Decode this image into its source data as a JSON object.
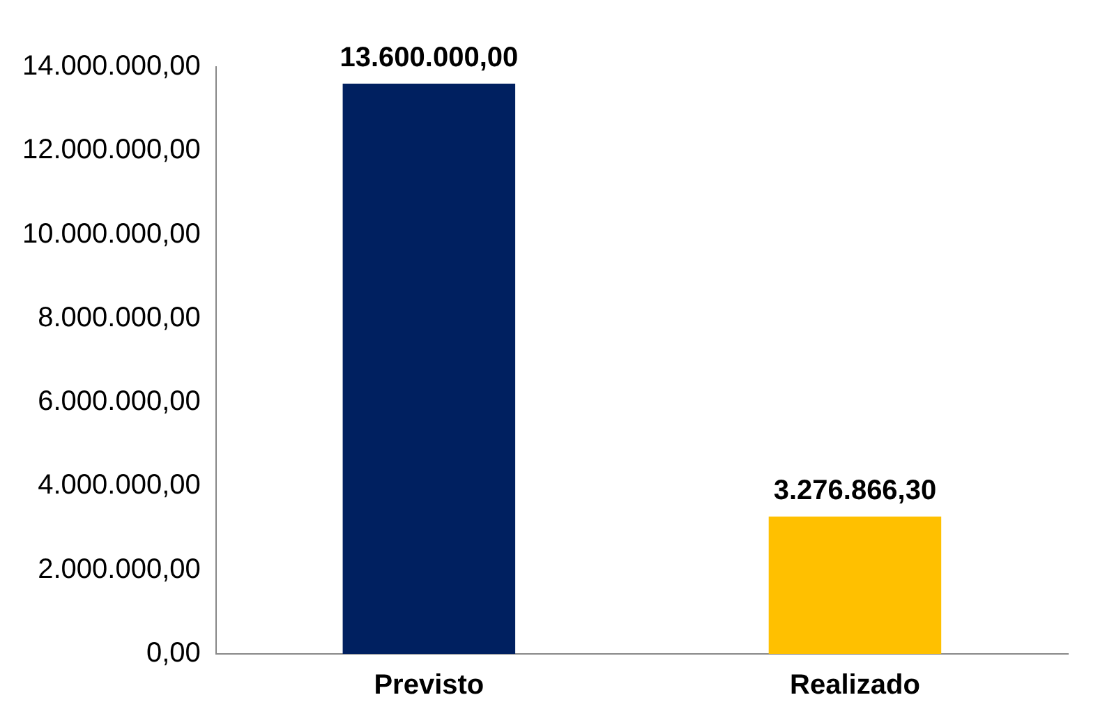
{
  "chart_data": {
    "type": "bar",
    "categories": [
      "Previsto",
      "Realizado"
    ],
    "values": [
      13600000,
      3276866.3
    ],
    "colors": [
      "#002060",
      "#ffc000"
    ],
    "value_labels": [
      "13.600.000,00",
      "3.276.866,30"
    ],
    "ylim": [
      0,
      14000000
    ],
    "yticks": [
      {
        "value": 0,
        "label": "0,00"
      },
      {
        "value": 2000000,
        "label": "2.000.000,00"
      },
      {
        "value": 4000000,
        "label": "4.000.000,00"
      },
      {
        "value": 6000000,
        "label": "6.000.000,00"
      },
      {
        "value": 8000000,
        "label": "8.000.000,00"
      },
      {
        "value": 10000000,
        "label": "10.000.000,00"
      },
      {
        "value": 12000000,
        "label": "12.000.000,00"
      },
      {
        "value": 14000000,
        "label": "14.000.000,00"
      }
    ],
    "grid": false,
    "legend": false
  }
}
